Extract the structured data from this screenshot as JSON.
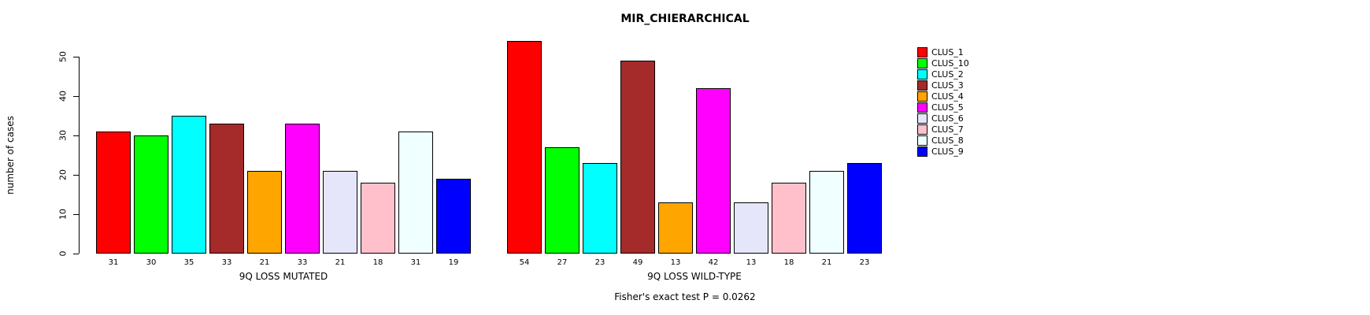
{
  "chart_data": {
    "type": "bar",
    "title": "MIR_CHIERARCHICAL",
    "ylabel": "number of cases",
    "annotation": "Fisher's exact test P = 0.0262",
    "clusters": [
      "CLUS_1",
      "CLUS_10",
      "CLUS_2",
      "CLUS_3",
      "CLUS_4",
      "CLUS_5",
      "CLUS_6",
      "CLUS_7",
      "CLUS_8",
      "CLUS_9"
    ],
    "colors": [
      "#FF0000",
      "#00FF00",
      "#00FFFF",
      "#A52A2A",
      "#FFA500",
      "#FF00FF",
      "#E6E6FA",
      "#FFC0CB",
      "#F0FFFF",
      "#0000FF"
    ],
    "groups": [
      {
        "label": "9Q LOSS MUTATED",
        "values": [
          31,
          30,
          35,
          33,
          21,
          33,
          21,
          18,
          31,
          19
        ]
      },
      {
        "label": "9Q LOSS WILD-TYPE",
        "values": [
          54,
          27,
          23,
          49,
          13,
          42,
          13,
          18,
          21,
          23
        ]
      }
    ],
    "y_ticks": [
      0,
      10,
      20,
      30,
      40,
      50
    ],
    "ylim": [
      0,
      55
    ],
    "grid": false,
    "legend_position": "right"
  }
}
